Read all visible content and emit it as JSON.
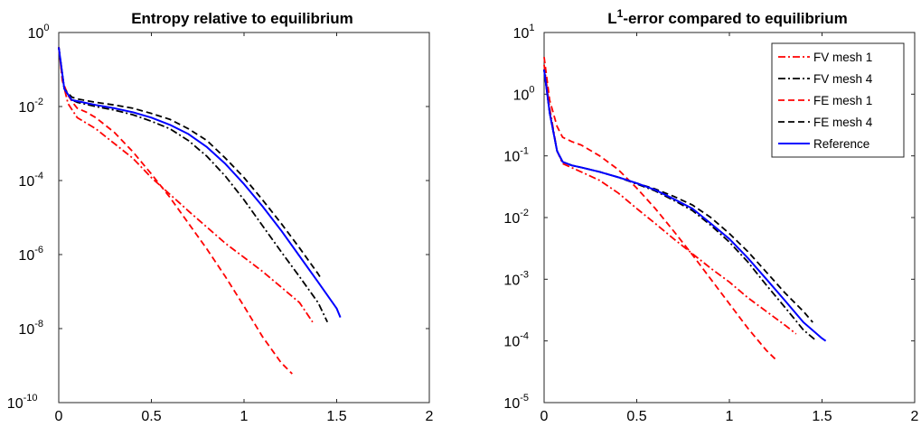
{
  "chart_data": [
    {
      "type": "line",
      "title": "Entropy relative to equilibrium",
      "xlabel": "",
      "ylabel": "",
      "xlim": [
        0,
        2
      ],
      "ylim": [
        1e-10,
        1
      ],
      "yscale": "log",
      "grid": false,
      "legend": null,
      "x_ticks": [
        "0",
        "0.5",
        "1",
        "1.5",
        "2"
      ],
      "y_ticks": [
        {
          "base": "10",
          "exp": "0",
          "value": 1
        },
        {
          "base": "10",
          "exp": "-2",
          "value": 0.01
        },
        {
          "base": "10",
          "exp": "-4",
          "value": 0.0001
        },
        {
          "base": "10",
          "exp": "-6",
          "value": 1e-06
        },
        {
          "base": "10",
          "exp": "-8",
          "value": 1e-08
        },
        {
          "base": "10",
          "exp": "-10",
          "value": 1e-10
        }
      ],
      "series": [
        {
          "name": "FV mesh 1",
          "color": "#ff0000",
          "dash": "dashdot",
          "x": [
            0,
            0.02,
            0.05,
            0.1,
            0.2,
            0.3,
            0.4,
            0.5,
            0.7,
            0.9,
            1.1,
            1.3,
            1.37
          ],
          "y": [
            0.4,
            0.05,
            0.012,
            0.005,
            0.0025,
            0.001,
            0.0004,
            0.00012,
            1.5e-05,
            2e-06,
            3.5e-07,
            5e-08,
            1.5e-08
          ]
        },
        {
          "name": "FV mesh 4",
          "color": "#000000",
          "dash": "dashdot",
          "x": [
            0,
            0.03,
            0.07,
            0.1,
            0.2,
            0.3,
            0.4,
            0.5,
            0.6,
            0.7,
            0.8,
            0.9,
            1.0,
            1.1,
            1.2,
            1.3,
            1.4,
            1.45
          ],
          "y": [
            0.4,
            0.03,
            0.015,
            0.013,
            0.01,
            0.008,
            0.006,
            0.004,
            0.0025,
            0.0012,
            0.00045,
            0.00013,
            3e-05,
            6e-06,
            1.2e-06,
            2.5e-07,
            5e-08,
            1.5e-08
          ]
        },
        {
          "name": "FE mesh 1",
          "color": "#ff0000",
          "dash": "dash",
          "x": [
            0,
            0.02,
            0.05,
            0.08,
            0.1,
            0.15,
            0.2,
            0.3,
            0.4,
            0.5,
            0.6,
            0.7,
            0.8,
            0.9,
            1.0,
            1.1,
            1.2,
            1.26
          ],
          "y": [
            0.4,
            0.05,
            0.02,
            0.012,
            0.009,
            0.007,
            0.005,
            0.002,
            0.0006,
            0.00015,
            3.5e-05,
            7e-06,
            1.4e-06,
            2.5e-07,
            4e-08,
            6e-09,
            1.2e-09,
            6e-10
          ]
        },
        {
          "name": "FE mesh 4",
          "color": "#000000",
          "dash": "dash",
          "x": [
            0,
            0.03,
            0.07,
            0.1,
            0.2,
            0.3,
            0.4,
            0.5,
            0.6,
            0.7,
            0.8,
            0.9,
            1.0,
            1.1,
            1.2,
            1.3,
            1.4,
            1.41
          ],
          "y": [
            0.4,
            0.03,
            0.018,
            0.016,
            0.013,
            0.011,
            0.009,
            0.0065,
            0.0045,
            0.0025,
            0.0012,
            0.0004,
            0.00012,
            3e-05,
            7e-06,
            1.5e-06,
            3e-07,
            2.5e-07
          ]
        },
        {
          "name": "Reference",
          "color": "#0000ff",
          "dash": "solid",
          "x": [
            0,
            0.03,
            0.07,
            0.1,
            0.2,
            0.3,
            0.4,
            0.5,
            0.6,
            0.7,
            0.8,
            0.9,
            1.0,
            1.1,
            1.2,
            1.3,
            1.4,
            1.5,
            1.52
          ],
          "y": [
            0.4,
            0.03,
            0.015,
            0.014,
            0.011,
            0.009,
            0.007,
            0.005,
            0.0032,
            0.0018,
            0.0008,
            0.00028,
            8e-05,
            2e-05,
            4.5e-06,
            9e-07,
            1.8e-07,
            3.5e-08,
            2e-08
          ]
        }
      ]
    },
    {
      "type": "line",
      "title_base": "L",
      "title_sup": "1",
      "title_rest": "-error compared to equilibrium",
      "xlabel": "",
      "ylabel": "",
      "xlim": [
        0,
        2
      ],
      "ylim": [
        1e-05,
        10
      ],
      "yscale": "log",
      "grid": false,
      "legend": "top-right",
      "x_ticks": [
        "0",
        "0.5",
        "1",
        "1.5",
        "2"
      ],
      "y_ticks": [
        {
          "base": "10",
          "exp": "1",
          "value": 10
        },
        {
          "base": "10",
          "exp": "0",
          "value": 1
        },
        {
          "base": "10",
          "exp": "-1",
          "value": 0.1
        },
        {
          "base": "10",
          "exp": "-2",
          "value": 0.01
        },
        {
          "base": "10",
          "exp": "-3",
          "value": 0.001
        },
        {
          "base": "10",
          "exp": "-4",
          "value": 0.0001
        },
        {
          "base": "10",
          "exp": "-5",
          "value": 1e-05
        }
      ],
      "series": [
        {
          "name": "FV mesh 1",
          "color": "#ff0000",
          "dash": "dashdot",
          "x": [
            0,
            0.03,
            0.07,
            0.1,
            0.2,
            0.3,
            0.4,
            0.5,
            0.6,
            0.7,
            0.8,
            0.9,
            1.0,
            1.1,
            1.2,
            1.3,
            1.36
          ],
          "y": [
            3,
            0.6,
            0.12,
            0.075,
            0.055,
            0.04,
            0.025,
            0.014,
            0.008,
            0.0045,
            0.0026,
            0.0015,
            0.0009,
            0.0005,
            0.0003,
            0.00018,
            0.00013
          ]
        },
        {
          "name": "FV mesh 4",
          "color": "#000000",
          "dash": "dashdot",
          "x": [
            0,
            0.03,
            0.07,
            0.1,
            0.15,
            0.2,
            0.3,
            0.4,
            0.5,
            0.6,
            0.7,
            0.8,
            0.9,
            1.0,
            1.1,
            1.2,
            1.3,
            1.4,
            1.47
          ],
          "y": [
            2.5,
            0.5,
            0.12,
            0.08,
            0.07,
            0.065,
            0.055,
            0.045,
            0.035,
            0.027,
            0.019,
            0.013,
            0.0075,
            0.004,
            0.0019,
            0.0008,
            0.00035,
            0.00015,
            0.0001
          ]
        },
        {
          "name": "FE mesh 1",
          "color": "#ff0000",
          "dash": "dash",
          "x": [
            0,
            0.03,
            0.07,
            0.1,
            0.15,
            0.2,
            0.3,
            0.4,
            0.5,
            0.6,
            0.7,
            0.8,
            0.9,
            1.0,
            1.1,
            1.2,
            1.25
          ],
          "y": [
            4,
            0.8,
            0.3,
            0.2,
            0.17,
            0.15,
            0.1,
            0.06,
            0.03,
            0.014,
            0.006,
            0.0025,
            0.001,
            0.0004,
            0.00016,
            7e-05,
            5e-05
          ]
        },
        {
          "name": "FE mesh 4",
          "color": "#000000",
          "dash": "dash",
          "x": [
            0,
            0.03,
            0.07,
            0.1,
            0.15,
            0.2,
            0.3,
            0.4,
            0.5,
            0.6,
            0.7,
            0.8,
            0.9,
            1.0,
            1.1,
            1.2,
            1.3,
            1.4,
            1.45
          ],
          "y": [
            2.5,
            0.5,
            0.12,
            0.08,
            0.07,
            0.065,
            0.055,
            0.045,
            0.036,
            0.029,
            0.022,
            0.016,
            0.01,
            0.0055,
            0.0028,
            0.0013,
            0.0006,
            0.0003,
            0.0002
          ]
        },
        {
          "name": "Reference",
          "color": "#0000ff",
          "dash": "solid",
          "x": [
            0,
            0.03,
            0.07,
            0.1,
            0.15,
            0.2,
            0.3,
            0.4,
            0.5,
            0.6,
            0.7,
            0.8,
            0.9,
            1.0,
            1.1,
            1.2,
            1.3,
            1.4,
            1.5,
            1.52
          ],
          "y": [
            2.5,
            0.5,
            0.12,
            0.08,
            0.07,
            0.065,
            0.055,
            0.045,
            0.036,
            0.028,
            0.02,
            0.014,
            0.008,
            0.0045,
            0.0022,
            0.001,
            0.00045,
            0.0002,
            0.00011,
            0.0001
          ]
        }
      ]
    }
  ]
}
